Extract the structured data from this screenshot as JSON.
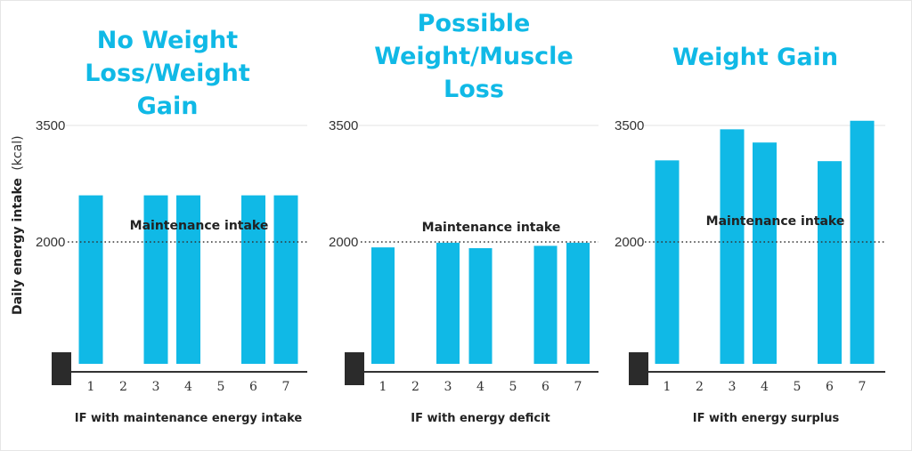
{
  "chart_data": [
    {
      "type": "bar",
      "title": "No Weight Loss/Weight Gain",
      "xlabel": "IF with maintenance energy intake",
      "categories": [
        "1",
        "2",
        "3",
        "4",
        "5",
        "6",
        "7"
      ],
      "values": [
        2600,
        null,
        2600,
        2600,
        null,
        2600,
        2600
      ],
      "ytick_values": [
        2000,
        3500
      ],
      "ytick_labels": [
        "2000",
        "3500"
      ],
      "reference_line": {
        "value": 2000,
        "label": "Maintenance intake",
        "style": "dotted"
      },
      "color": "#10b9e6"
    },
    {
      "type": "bar",
      "title": "Possible Weight/Muscle Loss",
      "xlabel": "IF with energy deficit",
      "categories": [
        "1",
        "2",
        "3",
        "4",
        "5",
        "6",
        "7"
      ],
      "values": [
        1930,
        null,
        1990,
        1920,
        null,
        1950,
        1990
      ],
      "ytick_values": [
        2000,
        3500
      ],
      "ytick_labels": [
        "2000",
        "3500"
      ],
      "reference_line": {
        "value": 2000,
        "label": "Maintenance intake",
        "style": "dotted"
      },
      "color": "#10b9e6"
    },
    {
      "type": "bar",
      "title": "Weight Gain",
      "xlabel": "IF with energy surplus",
      "categories": [
        "1",
        "2",
        "3",
        "4",
        "5",
        "6",
        "7"
      ],
      "values": [
        3050,
        null,
        3450,
        3280,
        null,
        3040,
        3560
      ],
      "ytick_values": [
        2000,
        3500
      ],
      "ytick_labels": [
        "2000",
        "3500"
      ],
      "reference_line": {
        "value": 2000,
        "label": "Maintenance intake",
        "style": "dotted"
      },
      "color": "#10b9e6"
    }
  ],
  "ylabel_main": "Daily energy intake",
  "ylabel_unit": "(kcal)"
}
